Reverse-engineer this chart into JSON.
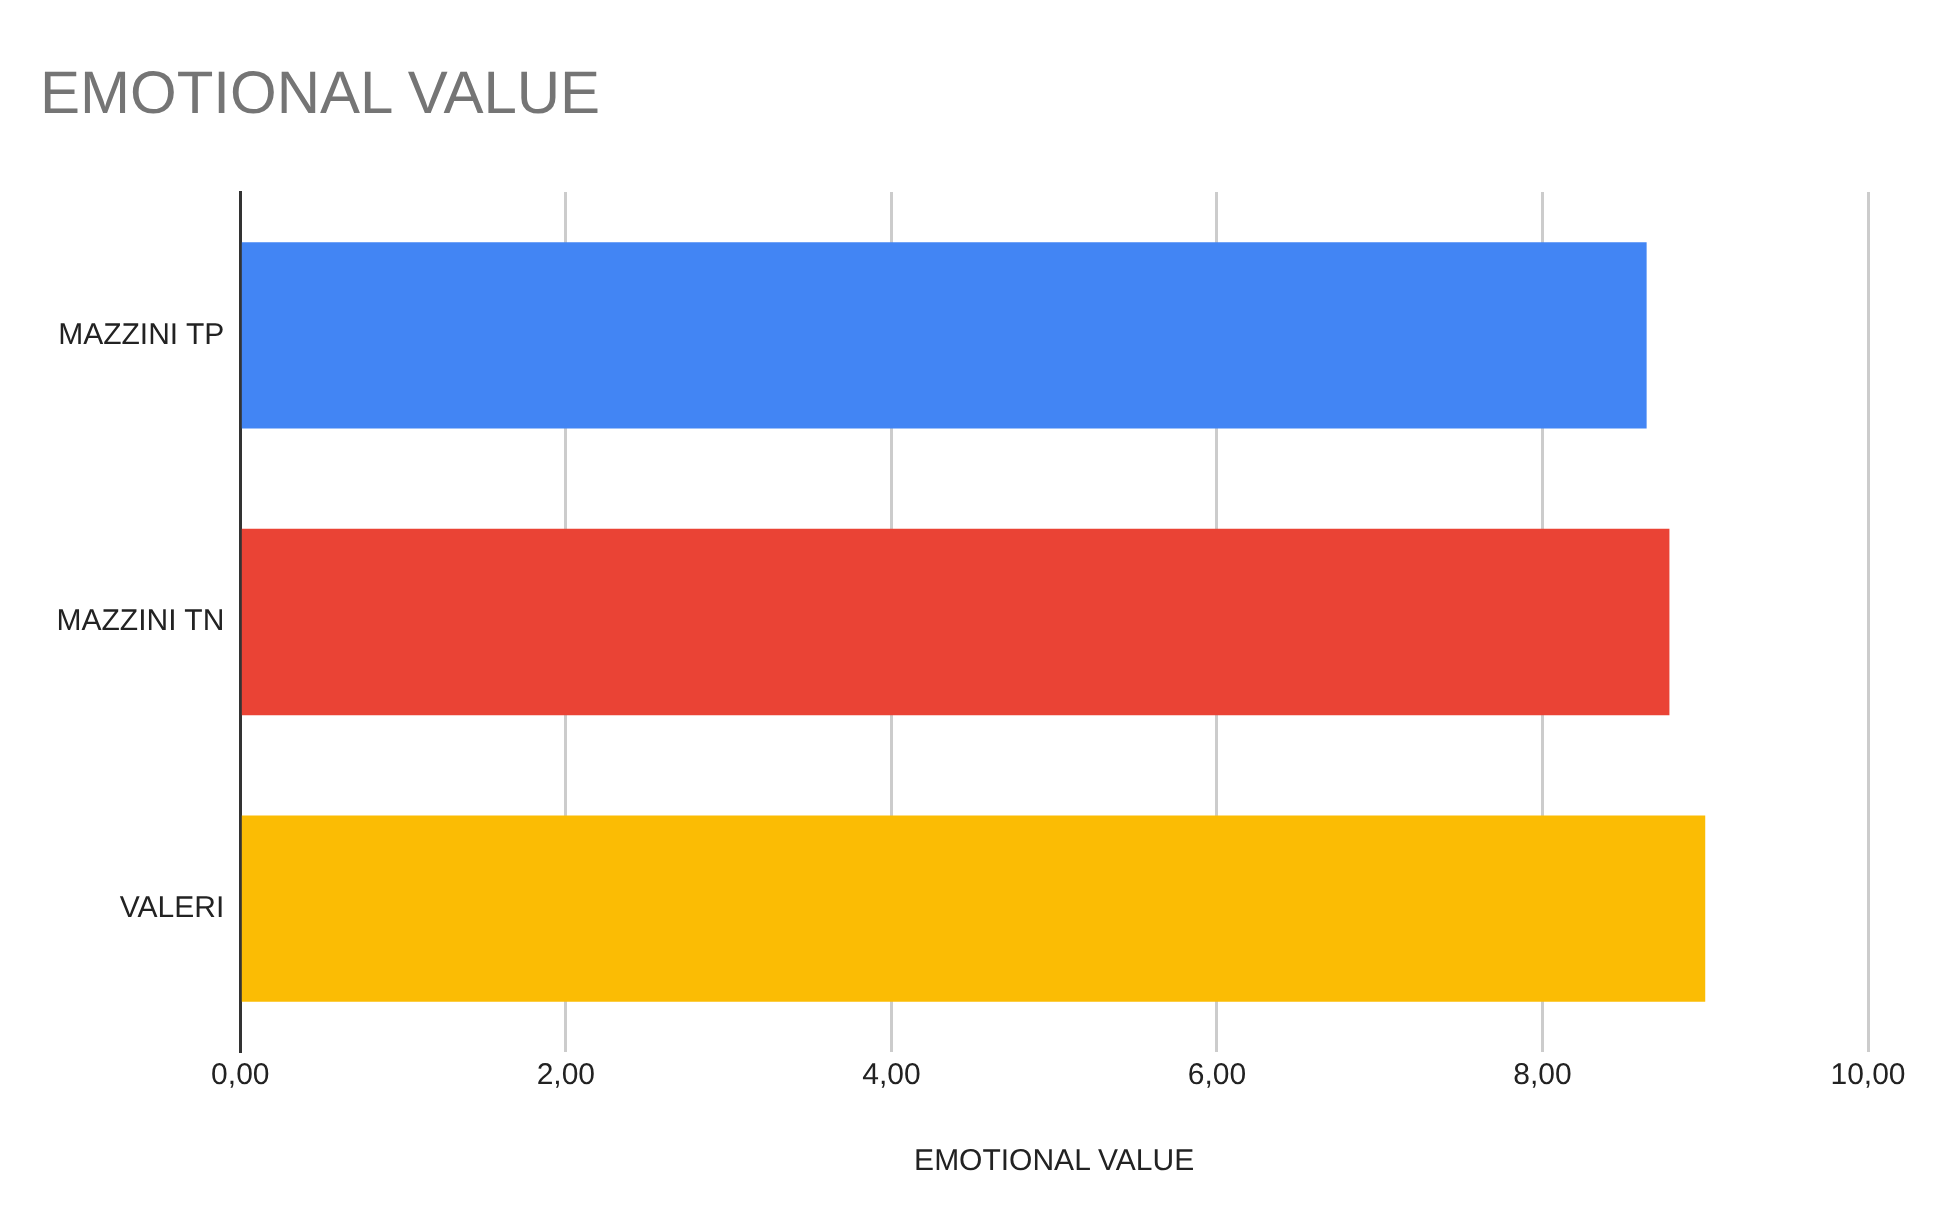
{
  "chart_data": {
    "type": "bar",
    "orientation": "horizontal",
    "title": "EMOTIONAL VALUE",
    "xlabel": "EMOTIONAL VALUE",
    "categories": [
      "MAZZINI TP",
      "MAZZINI TN",
      "VALERI"
    ],
    "values": [
      8.64,
      8.78,
      9.0
    ],
    "colors": [
      "#4285f4",
      "#ea4335",
      "#fbbc04"
    ],
    "xlim": [
      0,
      10
    ],
    "xticks": [
      {
        "value": 0,
        "label": "0,00"
      },
      {
        "value": 2,
        "label": "2,00"
      },
      {
        "value": 4,
        "label": "4,00"
      },
      {
        "value": 6,
        "label": "6,00"
      },
      {
        "value": 8,
        "label": "8,00"
      },
      {
        "value": 10,
        "label": "10,00"
      }
    ],
    "grid": "x",
    "legend": false
  }
}
